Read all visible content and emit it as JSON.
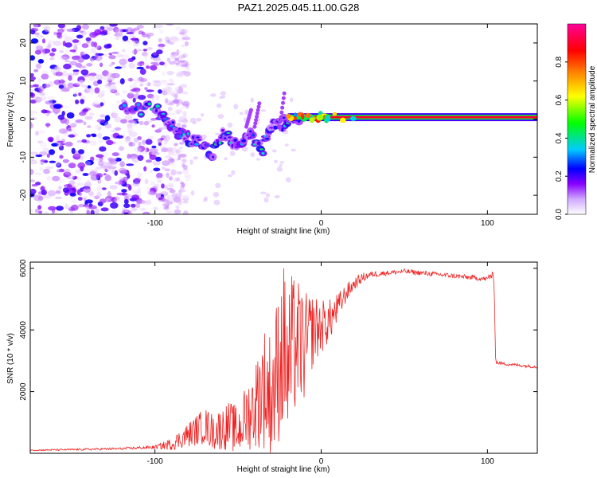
{
  "title": "PAZ1.2025.045.11.00.G28",
  "chart_data": [
    {
      "type": "heatmap",
      "title": "PAZ1.2025.045.11.00.G28",
      "xlabel": "Height of straight line (km)",
      "ylabel": "Frequency (Hz)",
      "xlim": [
        -175,
        130
      ],
      "ylim": [
        -25,
        25
      ],
      "xticks": [
        -100,
        0,
        100
      ],
      "yticks": [
        -20,
        -10,
        0,
        10,
        20
      ],
      "colorbar": {
        "label": "Normalized spectral amplitude",
        "range": [
          0,
          1
        ],
        "ticks": [
          0.0,
          0.2,
          0.4,
          0.6,
          0.8
        ],
        "stops": [
          "#ffffff",
          "#8800ff",
          "#0000ff",
          "#00ccff",
          "#00ff00",
          "#ffff00",
          "#ff8800",
          "#ff0000",
          "#ff0099"
        ]
      },
      "features": {
        "noise_region_x": [
          -175,
          -95
        ],
        "carrier_line": {
          "x_start": -20,
          "x_end": 130,
          "frequency_hz": 0.5,
          "amplitude": 0.9
        },
        "descending_trace": [
          [
            -120,
            3
          ],
          [
            -110,
            2.5
          ],
          [
            -100,
            3
          ],
          [
            -95,
            0
          ],
          [
            -90,
            -2
          ],
          [
            -85,
            -4
          ],
          [
            -80,
            -5
          ],
          [
            -75,
            -6
          ],
          [
            -70,
            -7
          ],
          [
            -65,
            -9
          ],
          [
            -60,
            -4
          ],
          [
            -55,
            -5
          ],
          [
            -50,
            -7
          ],
          [
            -45,
            -3
          ],
          [
            -40,
            -6
          ],
          [
            -35,
            -8
          ],
          [
            -30,
            -1
          ],
          [
            -25,
            -2
          ],
          [
            -20,
            0
          ],
          [
            -15,
            0.5
          ],
          [
            -10,
            1
          ]
        ]
      }
    },
    {
      "type": "line",
      "xlabel": "Height of straight line (km)",
      "ylabel": "SNR (10 * v/v)",
      "xlim": [
        -175,
        130
      ],
      "ylim": [
        0,
        6200
      ],
      "xticks": [
        -100,
        0,
        100
      ],
      "yticks": [
        2000,
        4000,
        6000
      ],
      "series": [
        {
          "name": "SNR",
          "color": "#ff2020",
          "x": [
            -175,
            -150,
            -120,
            -100,
            -90,
            -80,
            -70,
            -65,
            -60,
            -55,
            -50,
            -45,
            -40,
            -35,
            -30,
            -25,
            -22,
            -20,
            -18,
            -15,
            -10,
            -5,
            0,
            5,
            10,
            15,
            20,
            25,
            30,
            40,
            50,
            60,
            70,
            80,
            90,
            100,
            102,
            104,
            105,
            110,
            120,
            130
          ],
          "y": [
            100,
            120,
            150,
            200,
            300,
            600,
            900,
            700,
            800,
            900,
            700,
            1200,
            1500,
            2200,
            1800,
            3000,
            3500,
            2500,
            3200,
            3600,
            3400,
            4000,
            4100,
            4300,
            4700,
            5200,
            5500,
            5700,
            5800,
            5850,
            5900,
            5850,
            5800,
            5750,
            5700,
            5650,
            5800,
            5600,
            2950,
            2900,
            2850,
            2800
          ],
          "noise_amplitude": [
            20,
            30,
            40,
            60,
            200,
            400,
            600,
            600,
            700,
            800,
            800,
            1100,
            1400,
            2000,
            2200,
            2600,
            2800,
            2800,
            2600,
            2200,
            1800,
            1200,
            900,
            700,
            500,
            300,
            200,
            150,
            100,
            80,
            80,
            80,
            80,
            80,
            80,
            80,
            200,
            150,
            60,
            50,
            50,
            50
          ]
        }
      ]
    }
  ]
}
